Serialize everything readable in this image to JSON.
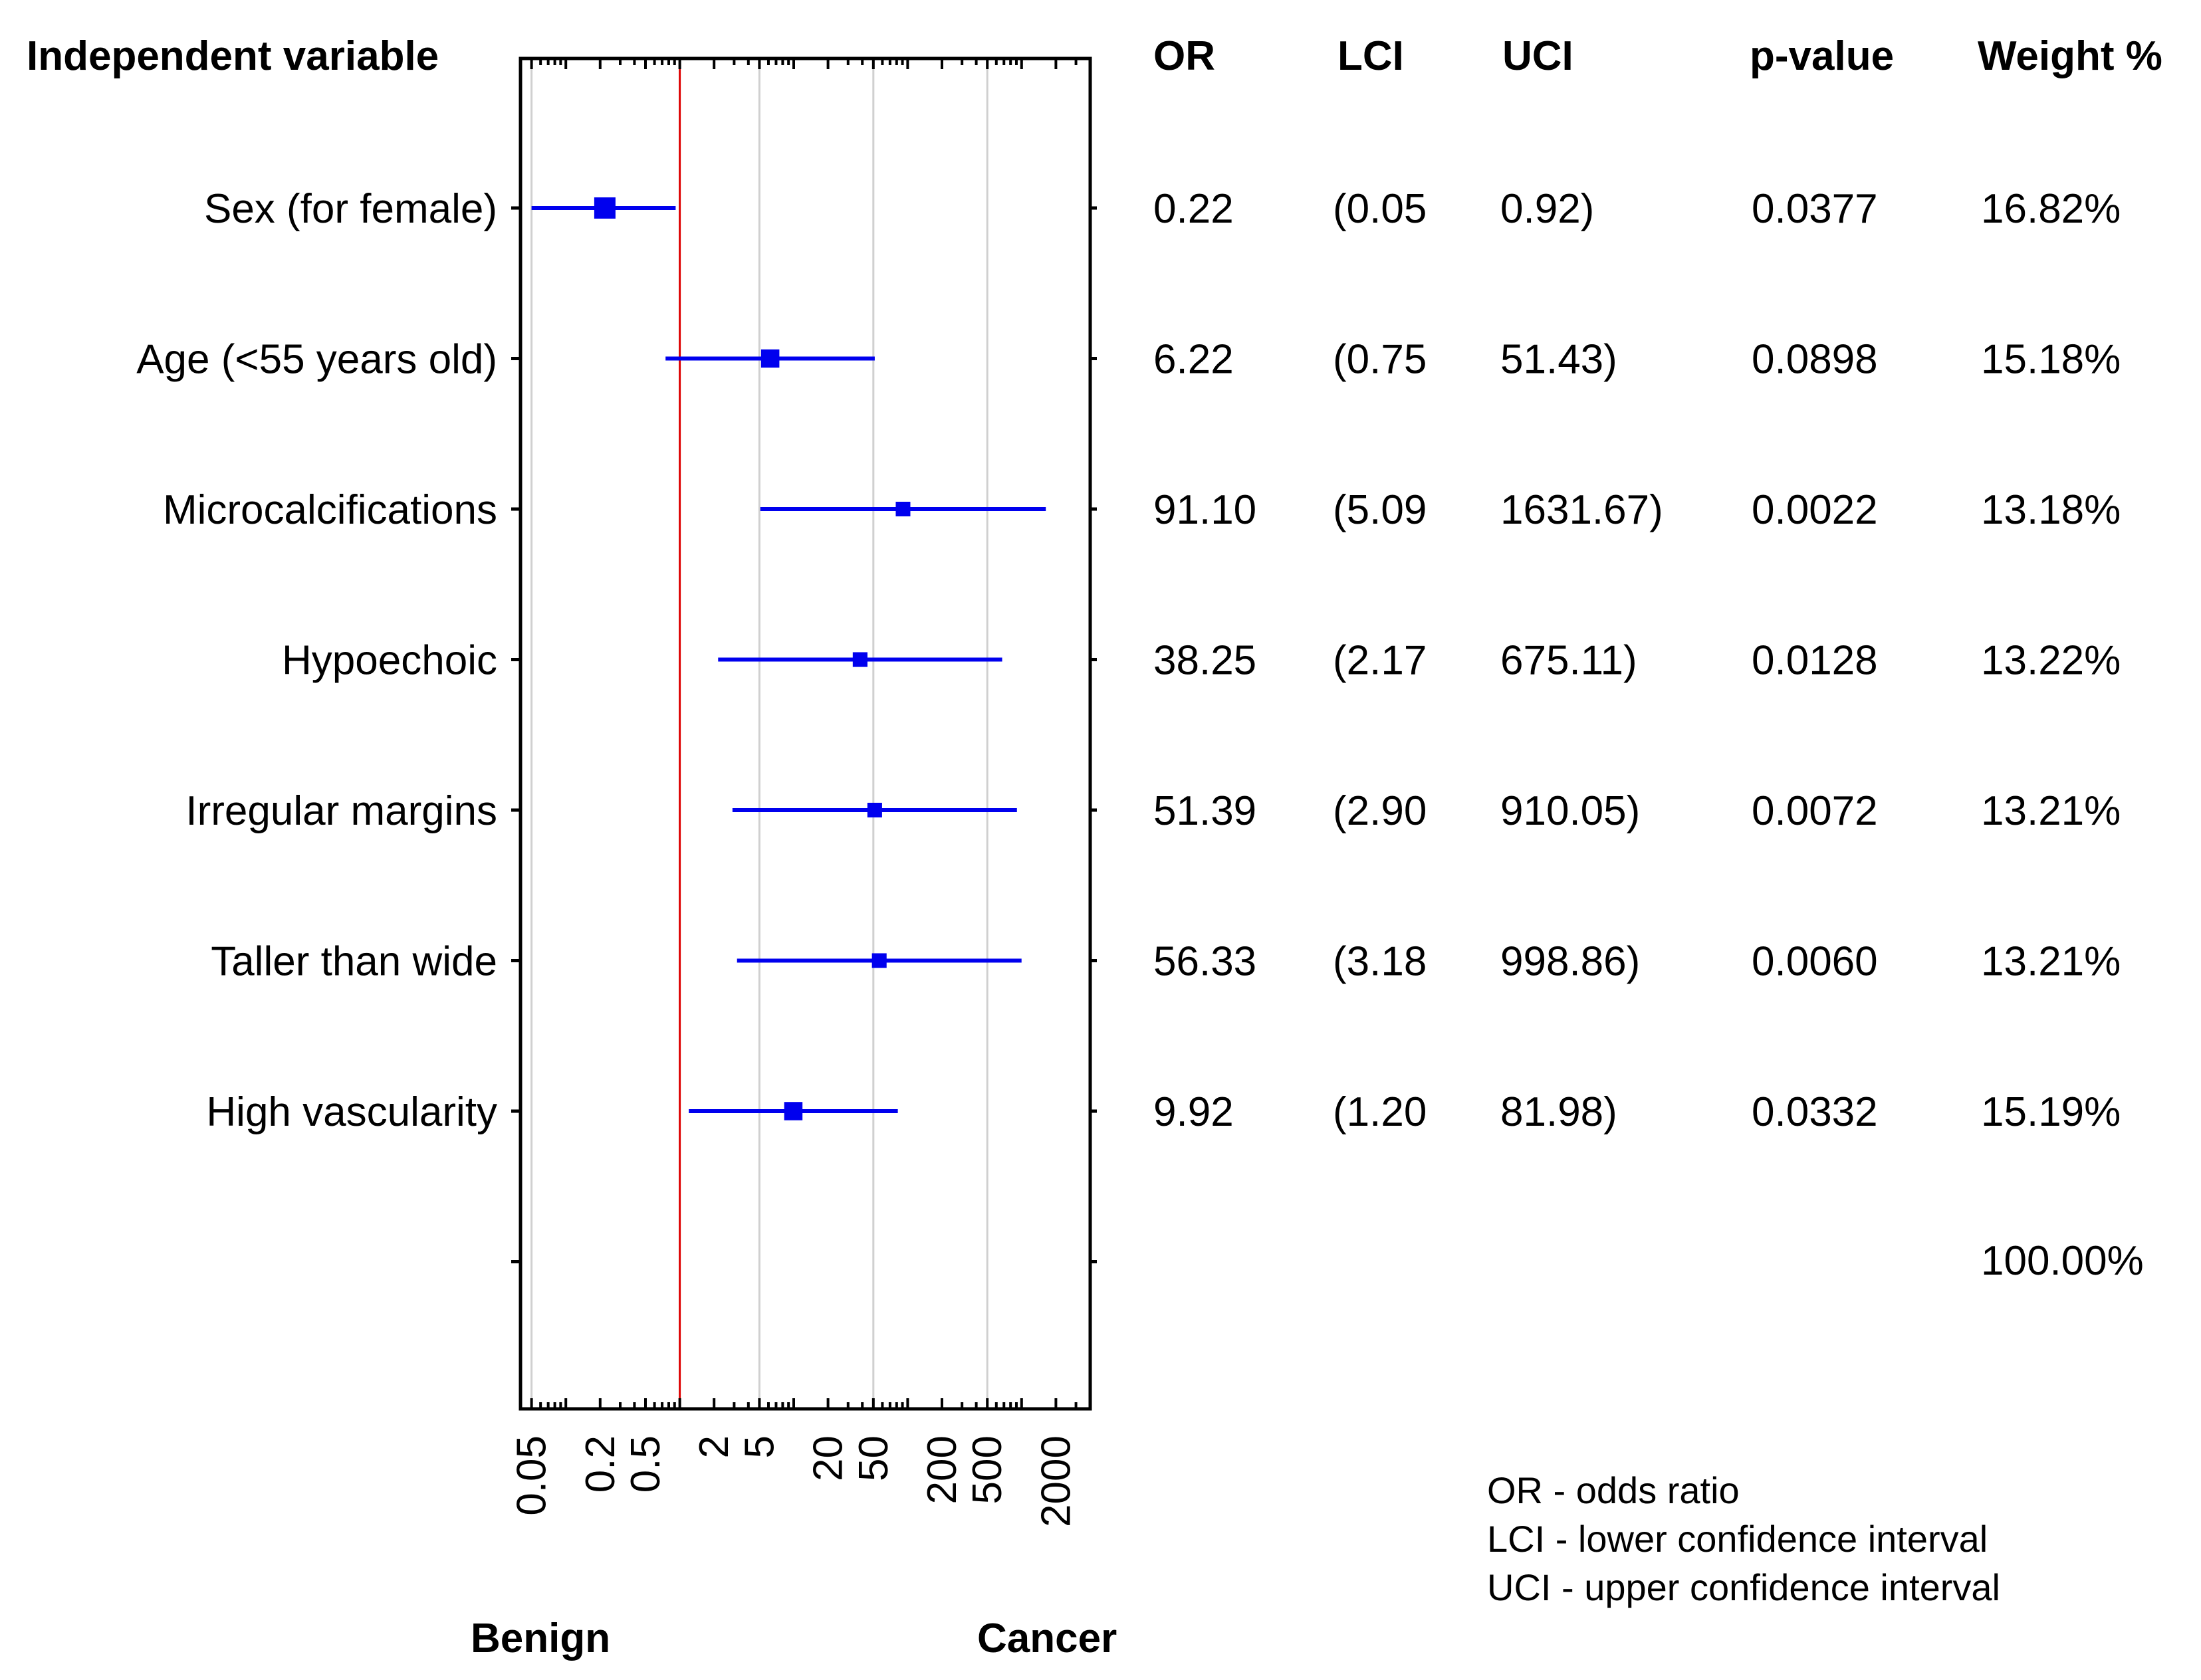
{
  "chart_data": {
    "type": "forest",
    "x_scale": "log",
    "reference_line": 1,
    "xlim": [
      0.04,
      4000
    ],
    "headers": {
      "variable": "Independent variable",
      "or": "OR",
      "lci": "LCI",
      "uci": "UCI",
      "p": "p-value",
      "weight": "Weight %"
    },
    "rows": [
      {
        "label": "Sex (for female)",
        "or": 0.22,
        "lci": 0.05,
        "uci": 0.92,
        "or_text": "0.22",
        "lci_text": "(0.05",
        "uci_text": "0.92)",
        "p_text": "0.0377",
        "weight_text": "16.82%"
      },
      {
        "label": "Age (<55 years old)",
        "or": 6.22,
        "lci": 0.75,
        "uci": 51.43,
        "or_text": "6.22",
        "lci_text": "(0.75",
        "uci_text": "51.43)",
        "p_text": "0.0898",
        "weight_text": "15.18%"
      },
      {
        "label": "Microcalcifications",
        "or": 91.1,
        "lci": 5.09,
        "uci": 1631.67,
        "or_text": "91.10",
        "lci_text": "(5.09",
        "uci_text": "1631.67)",
        "p_text": "0.0022",
        "weight_text": "13.18%"
      },
      {
        "label": "Hypoechoic",
        "or": 38.25,
        "lci": 2.17,
        "uci": 675.11,
        "or_text": "38.25",
        "lci_text": "(2.17",
        "uci_text": "675.11)",
        "p_text": "0.0128",
        "weight_text": "13.22%"
      },
      {
        "label": "Irregular margins",
        "or": 51.39,
        "lci": 2.9,
        "uci": 910.05,
        "or_text": "51.39",
        "lci_text": "(2.90",
        "uci_text": "910.05)",
        "p_text": "0.0072",
        "weight_text": "13.21%"
      },
      {
        "label": "Taller than wide",
        "or": 56.33,
        "lci": 3.18,
        "uci": 998.86,
        "or_text": "56.33",
        "lci_text": "(3.18",
        "uci_text": "998.86)",
        "p_text": "0.0060",
        "weight_text": "13.21%"
      },
      {
        "label": "High vascularity",
        "or": 9.92,
        "lci": 1.2,
        "uci": 81.98,
        "or_text": "9.92",
        "lci_text": "(1.20",
        "uci_text": "81.98)",
        "p_text": "0.0332",
        "weight_text": "15.19%"
      }
    ],
    "total_weight": "100.00%",
    "x_ticks": [
      0.05,
      0.2,
      0.5,
      2,
      5,
      20,
      50,
      200,
      500,
      2000
    ],
    "x_tick_labels": [
      "0.05",
      "0.2",
      "0.5",
      "2",
      "5",
      "20",
      "50",
      "200",
      "500",
      "2000"
    ],
    "gridlines": [
      0.05,
      1,
      5,
      50,
      500
    ],
    "footer": {
      "left": "Benign",
      "right": "Cancer"
    },
    "legend": [
      "OR - odds ratio",
      "LCI - lower confidence interval",
      "UCI - upper confidence interval"
    ]
  },
  "colors": {
    "marker": "#0000ee",
    "reference": "#dd0000",
    "grid": "#d0d0d0",
    "axis": "#000000"
  }
}
